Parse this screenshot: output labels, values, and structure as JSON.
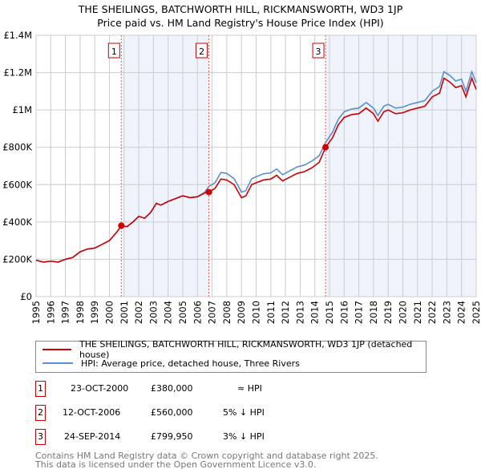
{
  "title": "THE SHEILINGS, BATCHWORTH HILL, RICKMANSWORTH, WD3 1JP",
  "subtitle": "Price paid vs. HM Land Registry's House Price Index (HPI)",
  "legend": {
    "price": "THE SHEILINGS, BATCHWORTH HILL, RICKMANSWORTH, WD3 1JP (detached house)",
    "hpi": "HPI: Average price, detached house, Three Rivers"
  },
  "colors": {
    "price": "#cc0000",
    "hpi": "#5b8fd0",
    "shade": "#eef3fc"
  },
  "sales": [
    {
      "n": "1",
      "date": "23-OCT-2000",
      "price": "£380,000",
      "rel": "≈ HPI",
      "x": 2000.81,
      "v": 380
    },
    {
      "n": "2",
      "date": "12-OCT-2006",
      "price": "£560,000",
      "rel": "5% ↓ HPI",
      "x": 2006.78,
      "v": 560
    },
    {
      "n": "3",
      "date": "24-SEP-2014",
      "price": "£799,950",
      "rel": "3% ↓ HPI",
      "x": 2014.73,
      "v": 799.95
    }
  ],
  "footer": [
    "Contains HM Land Registry data © Crown copyright and database right 2025.",
    "This data is licensed under the Open Government Licence v3.0."
  ],
  "chart_data": {
    "type": "line",
    "xlim": [
      1995,
      2025
    ],
    "ylim": [
      0,
      1400
    ],
    "yticks": [
      0,
      200,
      400,
      600,
      800,
      1000,
      1200,
      1400
    ],
    "ytick_labels": [
      "£0",
      "£200K",
      "£400K",
      "£600K",
      "£800K",
      "£1M",
      "£1.2M",
      "£1.4M"
    ],
    "xticks": [
      "1995",
      "1996",
      "1997",
      "1998",
      "1999",
      "2000",
      "2001",
      "2002",
      "2003",
      "2004",
      "2005",
      "2006",
      "2007",
      "2008",
      "2009",
      "2010",
      "2011",
      "2012",
      "2013",
      "2014",
      "2015",
      "2016",
      "2017",
      "2018",
      "2019",
      "2020",
      "2021",
      "2022",
      "2023",
      "2024",
      "2025"
    ],
    "shaded": [
      [
        2000.81,
        2006.78
      ],
      [
        2014.73,
        2025
      ]
    ],
    "x": [
      1995,
      1995.5,
      1996,
      1996.5,
      1997,
      1997.5,
      1998,
      1998.5,
      1999,
      1999.5,
      2000,
      2000.5,
      2000.81,
      2001.2,
      2001.6,
      2002,
      2002.4,
      2002.8,
      2003.2,
      2003.5,
      2004,
      2004.5,
      2005,
      2005.5,
      2006,
      2006.5,
      2006.78,
      2007.2,
      2007.6,
      2008,
      2008.5,
      2009,
      2009.3,
      2009.7,
      2010,
      2010.5,
      2011,
      2011.4,
      2011.8,
      2012.3,
      2012.8,
      2013.3,
      2013.8,
      2014.3,
      2014.73,
      2015.2,
      2015.6,
      2016,
      2016.5,
      2017,
      2017.5,
      2018,
      2018.3,
      2018.7,
      2019,
      2019.5,
      2020,
      2020.5,
      2021,
      2021.5,
      2022,
      2022.5,
      2022.8,
      2023.2,
      2023.6,
      2024,
      2024.3,
      2024.7,
      2025
    ],
    "series": [
      {
        "name": "price",
        "values": [
          195,
          185,
          190,
          185,
          200,
          210,
          240,
          255,
          260,
          280,
          300,
          345,
          380,
          375,
          400,
          430,
          420,
          450,
          500,
          490,
          510,
          525,
          540,
          530,
          535,
          555,
          560,
          580,
          630,
          625,
          600,
          530,
          540,
          600,
          610,
          625,
          630,
          650,
          620,
          640,
          660,
          670,
          690,
          720,
          800,
          850,
          920,
          960,
          975,
          980,
          1010,
          980,
          940,
          990,
          1000,
          980,
          985,
          1000,
          1010,
          1020,
          1070,
          1090,
          1170,
          1150,
          1120,
          1130,
          1070,
          1170,
          1110
        ]
      },
      {
        "name": "hpi",
        "values": [
          195,
          185,
          190,
          185,
          200,
          210,
          240,
          255,
          260,
          280,
          300,
          345,
          380,
          375,
          400,
          430,
          420,
          450,
          500,
          490,
          510,
          525,
          540,
          530,
          535,
          560,
          590,
          610,
          665,
          660,
          632,
          560,
          568,
          632,
          642,
          658,
          663,
          684,
          653,
          674,
          695,
          705,
          726,
          755,
          825,
          880,
          950,
          990,
          1005,
          1010,
          1040,
          1010,
          970,
          1020,
          1030,
          1010,
          1015,
          1030,
          1040,
          1050,
          1100,
          1125,
          1205,
          1185,
          1155,
          1165,
          1100,
          1205,
          1145
        ]
      }
    ]
  }
}
